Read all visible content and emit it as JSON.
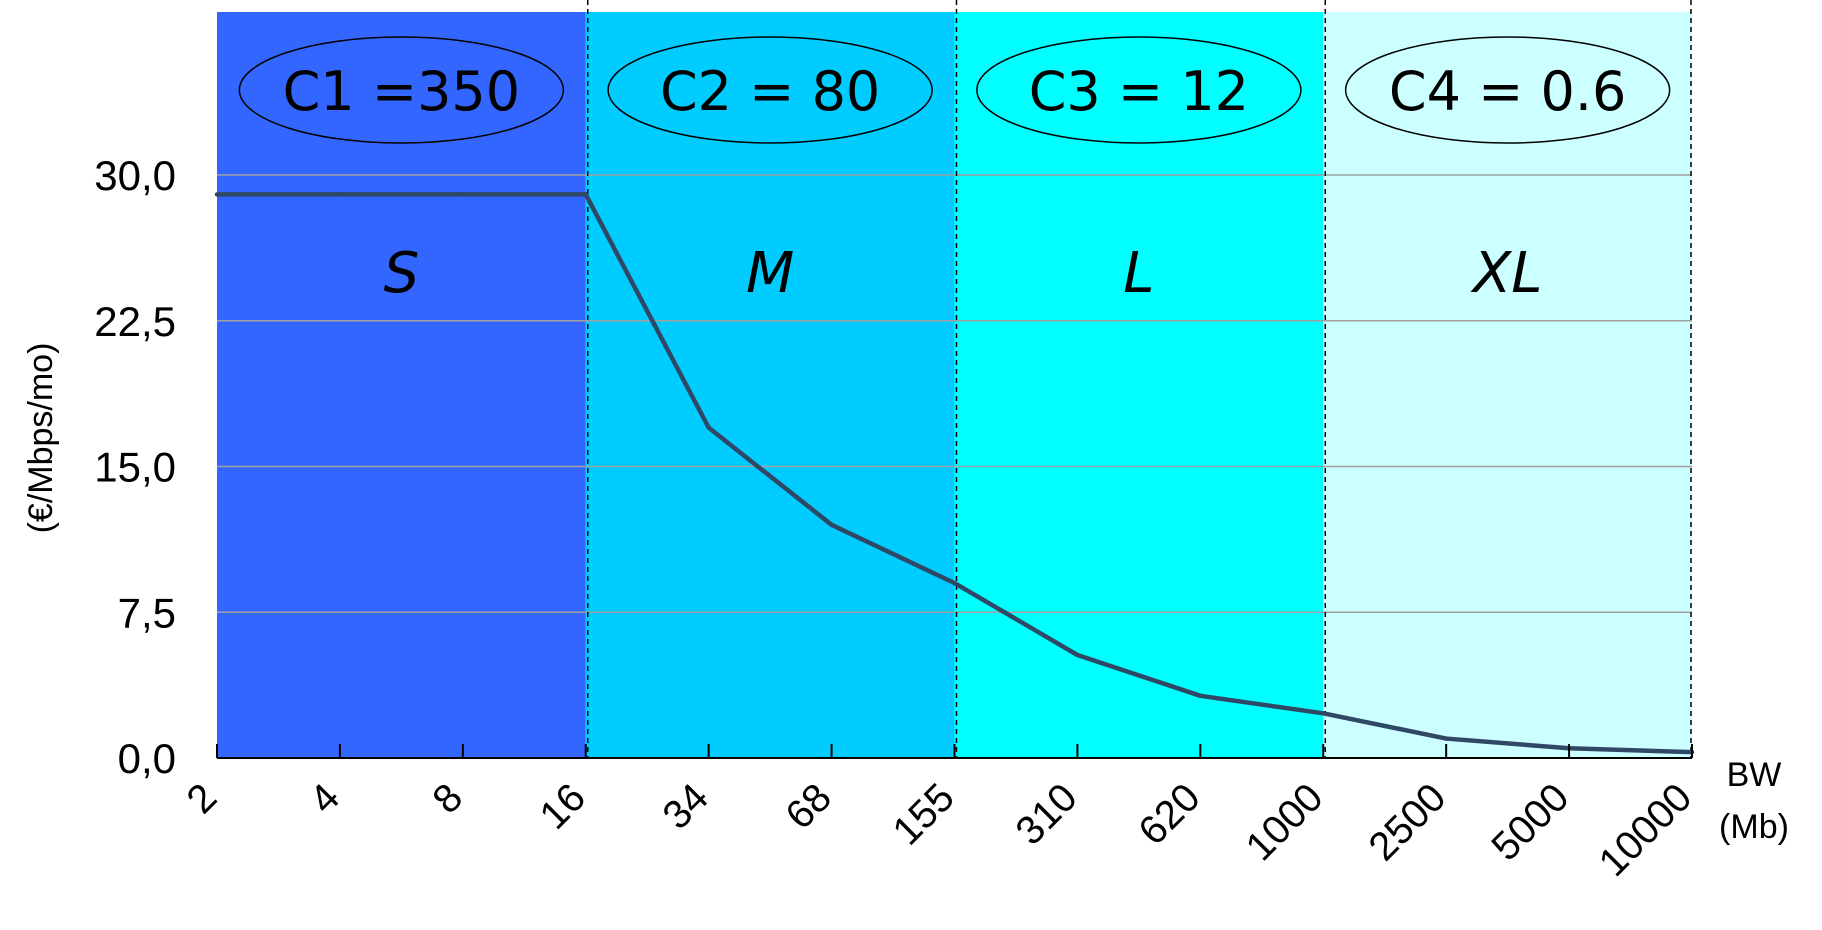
{
  "chart_data": {
    "type": "line",
    "ylabel": "(€/Mbps/mo)",
    "xlabel_line1": "BW",
    "xlabel_line2": "(Mb)",
    "ylim": [
      0,
      30
    ],
    "y_ticks": [
      "0,0",
      "7,5",
      "15,0",
      "22,5",
      "30,0"
    ],
    "y_tick_values": [
      0,
      7.5,
      15,
      22.5,
      30
    ],
    "categories": [
      "2",
      "4",
      "8",
      "16",
      "34",
      "68",
      "155",
      "310",
      "620",
      "1000",
      "2500",
      "5000",
      "10000"
    ],
    "series": [
      {
        "color": "#2f4866",
        "values": [
          29.0,
          29.0,
          29.0,
          29.0,
          17.0,
          12.0,
          9.0,
          5.3,
          3.2,
          2.3,
          1.0,
          0.5,
          0.3
        ]
      }
    ],
    "grid": "horizontal",
    "bands": [
      {
        "label": "S",
        "coef_label": "C1 =350",
        "color": "#3366ff",
        "from": 0,
        "to": 3
      },
      {
        "label": "M",
        "coef_label": "C2 = 80",
        "color": "#00ccff",
        "from": 3,
        "to": 6
      },
      {
        "label": "L",
        "coef_label": "C3 = 12",
        "color": "#00ffff",
        "from": 6,
        "to": 9
      },
      {
        "label": "XL",
        "coef_label": "C4 = 0.6",
        "color": "#ccffff",
        "from": 9,
        "to": 12
      }
    ]
  }
}
